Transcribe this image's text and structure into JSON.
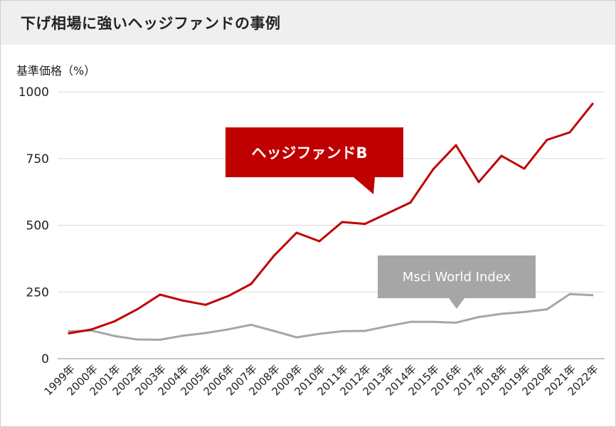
{
  "header": {
    "title": "下げ相場に強いヘッジファンドの事例"
  },
  "chart_data": {
    "type": "line",
    "ylabel": "基準価格（%）",
    "xlabel": "",
    "ylim": [
      0,
      1000
    ],
    "yticks": [
      0,
      250,
      500,
      750,
      1000
    ],
    "grid": true,
    "categories": [
      "1999年",
      "2000年",
      "2001年",
      "2002年",
      "2003年",
      "2004年",
      "2005年",
      "2006年",
      "2007年",
      "2008年",
      "2009年",
      "2010年",
      "2011年",
      "2012年",
      "2013年",
      "2014年",
      "2015年",
      "2016年",
      "2017年",
      "2018年",
      "2019年",
      "2020年",
      "2021年",
      "2022年"
    ],
    "series": [
      {
        "name": "ヘッジファンドB",
        "color": "#c00000",
        "values": [
          95,
          110,
          140,
          185,
          240,
          218,
          202,
          235,
          280,
          385,
          472,
          440,
          512,
          505,
          545,
          585,
          710,
          800,
          662,
          760,
          712,
          820,
          848,
          955
        ]
      },
      {
        "name": "Msci World Index",
        "color": "#a6a6a6",
        "values": [
          103,
          105,
          85,
          72,
          71,
          86,
          96,
          110,
          127,
          104,
          80,
          93,
          103,
          104,
          122,
          138,
          138,
          135,
          156,
          168,
          175,
          185,
          242,
          238
        ]
      }
    ]
  }
}
